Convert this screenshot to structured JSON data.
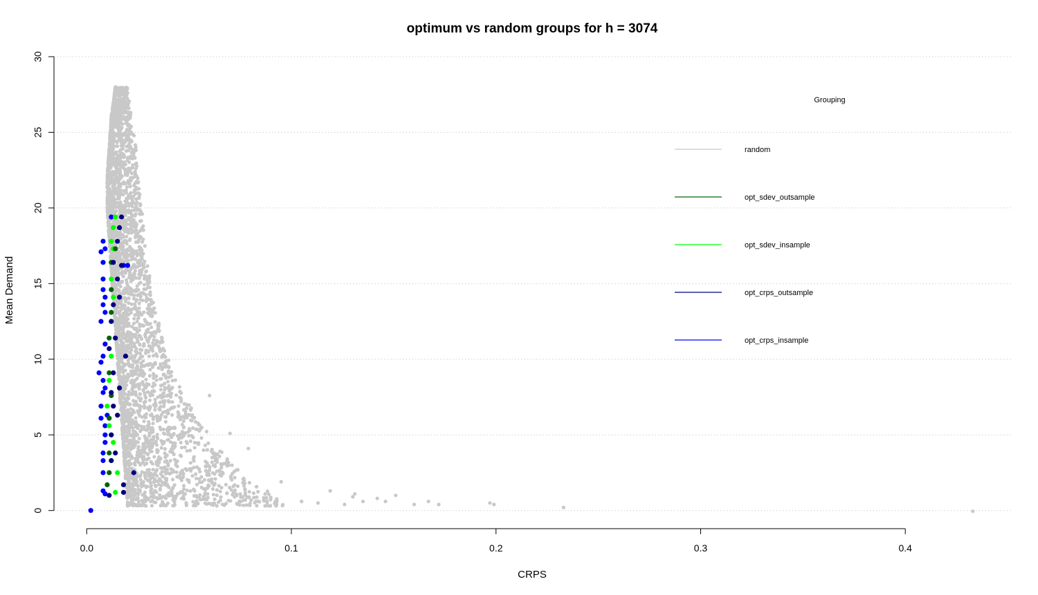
{
  "chart_data": {
    "type": "scatter",
    "title": "optimum vs random groups for h = 3074",
    "xlabel": "CRPS",
    "ylabel": "Mean Demand",
    "xlim": [
      -0.016,
      0.452
    ],
    "ylim": [
      -1.2,
      30
    ],
    "x_ticks": [
      0.0,
      0.1,
      0.2,
      0.3,
      0.4
    ],
    "x_tick_labels": [
      "0.0",
      "0.1",
      "0.2",
      "0.3",
      "0.4"
    ],
    "y_ticks": [
      0,
      5,
      10,
      15,
      20,
      25,
      30
    ],
    "y_tick_labels": [
      "0",
      "5",
      "10",
      "15",
      "20",
      "25",
      "30"
    ],
    "grid": "horizontal-dotted",
    "legend": {
      "title": "Grouping",
      "position": "top-right",
      "entries": [
        {
          "label": "random",
          "color": "#c8c8c8"
        },
        {
          "label": "opt_sdev_outsample",
          "color": "#006400"
        },
        {
          "label": "opt_sdev_insample",
          "color": "#00ff00"
        },
        {
          "label": "opt_crps_outsample",
          "color": "#000080"
        },
        {
          "label": "opt_crps_insample",
          "color": "#0000ff"
        }
      ]
    },
    "random_cloud_envelope": {
      "color": "#c8c8c8",
      "point_count": 3500,
      "profile": [
        {
          "y": 28.0,
          "x_min": 0.014,
          "x_max": 0.02
        },
        {
          "y": 26.0,
          "x_min": 0.012,
          "x_max": 0.022
        },
        {
          "y": 24.0,
          "x_min": 0.011,
          "x_max": 0.024
        },
        {
          "y": 22.0,
          "x_min": 0.01,
          "x_max": 0.025
        },
        {
          "y": 20.0,
          "x_min": 0.01,
          "x_max": 0.027
        },
        {
          "y": 18.0,
          "x_min": 0.011,
          "x_max": 0.028
        },
        {
          "y": 16.0,
          "x_min": 0.012,
          "x_max": 0.03
        },
        {
          "y": 14.0,
          "x_min": 0.013,
          "x_max": 0.033
        },
        {
          "y": 12.0,
          "x_min": 0.014,
          "x_max": 0.036
        },
        {
          "y": 10.0,
          "x_min": 0.015,
          "x_max": 0.04
        },
        {
          "y": 8.0,
          "x_min": 0.016,
          "x_max": 0.046
        },
        {
          "y": 6.0,
          "x_min": 0.017,
          "x_max": 0.055
        },
        {
          "y": 4.0,
          "x_min": 0.018,
          "x_max": 0.065
        },
        {
          "y": 2.0,
          "x_min": 0.019,
          "x_max": 0.08
        },
        {
          "y": 0.3,
          "x_min": 0.02,
          "x_max": 0.1
        }
      ],
      "outliers": [
        {
          "x": 0.06,
          "y": 7.6
        },
        {
          "x": 0.07,
          "y": 5.1
        },
        {
          "x": 0.079,
          "y": 4.1
        },
        {
          "x": 0.095,
          "y": 1.9
        },
        {
          "x": 0.105,
          "y": 0.6
        },
        {
          "x": 0.113,
          "y": 0.5
        },
        {
          "x": 0.119,
          "y": 1.3
        },
        {
          "x": 0.126,
          "y": 0.4
        },
        {
          "x": 0.13,
          "y": 0.9
        },
        {
          "x": 0.135,
          "y": 0.6
        },
        {
          "x": 0.131,
          "y": 1.1
        },
        {
          "x": 0.142,
          "y": 0.8
        },
        {
          "x": 0.146,
          "y": 0.6
        },
        {
          "x": 0.151,
          "y": 1.0
        },
        {
          "x": 0.16,
          "y": 0.4
        },
        {
          "x": 0.167,
          "y": 0.6
        },
        {
          "x": 0.172,
          "y": 0.4
        },
        {
          "x": 0.197,
          "y": 0.5
        },
        {
          "x": 0.199,
          "y": 0.4
        },
        {
          "x": 0.233,
          "y": 0.2
        },
        {
          "x": 0.433,
          "y": -0.05
        }
      ]
    },
    "series": [
      {
        "name": "opt_crps_insample",
        "color": "#0000ff",
        "points": [
          {
            "x": 0.002,
            "y": 0.0
          },
          {
            "x": 0.009,
            "y": 1.1
          },
          {
            "x": 0.008,
            "y": 1.3
          },
          {
            "x": 0.008,
            "y": 2.5
          },
          {
            "x": 0.008,
            "y": 3.3
          },
          {
            "x": 0.008,
            "y": 3.8
          },
          {
            "x": 0.009,
            "y": 4.5
          },
          {
            "x": 0.009,
            "y": 5.0
          },
          {
            "x": 0.009,
            "y": 5.6
          },
          {
            "x": 0.007,
            "y": 6.1
          },
          {
            "x": 0.01,
            "y": 6.3
          },
          {
            "x": 0.007,
            "y": 6.9
          },
          {
            "x": 0.008,
            "y": 7.8
          },
          {
            "x": 0.009,
            "y": 8.1
          },
          {
            "x": 0.008,
            "y": 8.6
          },
          {
            "x": 0.006,
            "y": 9.1
          },
          {
            "x": 0.007,
            "y": 9.8
          },
          {
            "x": 0.008,
            "y": 10.2
          },
          {
            "x": 0.009,
            "y": 11.0
          },
          {
            "x": 0.007,
            "y": 12.5
          },
          {
            "x": 0.009,
            "y": 13.1
          },
          {
            "x": 0.008,
            "y": 13.6
          },
          {
            "x": 0.009,
            "y": 14.1
          },
          {
            "x": 0.008,
            "y": 14.6
          },
          {
            "x": 0.008,
            "y": 15.3
          },
          {
            "x": 0.008,
            "y": 16.4
          },
          {
            "x": 0.007,
            "y": 17.1
          },
          {
            "x": 0.009,
            "y": 17.3
          },
          {
            "x": 0.008,
            "y": 17.8
          },
          {
            "x": 0.012,
            "y": 19.4
          },
          {
            "x": 0.02,
            "y": 16.2
          },
          {
            "x": 0.018,
            "y": 16.2
          }
        ]
      },
      {
        "name": "opt_sdev_insample",
        "color": "#00ff00",
        "points": [
          {
            "x": 0.014,
            "y": 1.2
          },
          {
            "x": 0.015,
            "y": 2.5
          },
          {
            "x": 0.012,
            "y": 3.3
          },
          {
            "x": 0.013,
            "y": 4.5
          },
          {
            "x": 0.011,
            "y": 5.6
          },
          {
            "x": 0.01,
            "y": 6.9
          },
          {
            "x": 0.011,
            "y": 8.6
          },
          {
            "x": 0.012,
            "y": 10.2
          },
          {
            "x": 0.012,
            "y": 12.5
          },
          {
            "x": 0.013,
            "y": 14.1
          },
          {
            "x": 0.012,
            "y": 15.3
          },
          {
            "x": 0.013,
            "y": 17.3
          },
          {
            "x": 0.013,
            "y": 18.7
          },
          {
            "x": 0.014,
            "y": 19.4
          },
          {
            "x": 0.012,
            "y": 17.8
          }
        ]
      },
      {
        "name": "opt_sdev_outsample",
        "color": "#006400",
        "points": [
          {
            "x": 0.01,
            "y": 1.7
          },
          {
            "x": 0.011,
            "y": 2.5
          },
          {
            "x": 0.011,
            "y": 3.8
          },
          {
            "x": 0.012,
            "y": 5.0
          },
          {
            "x": 0.011,
            "y": 6.1
          },
          {
            "x": 0.012,
            "y": 7.6
          },
          {
            "x": 0.011,
            "y": 9.1
          },
          {
            "x": 0.011,
            "y": 11.4
          },
          {
            "x": 0.012,
            "y": 13.1
          },
          {
            "x": 0.012,
            "y": 14.6
          },
          {
            "x": 0.012,
            "y": 16.4
          },
          {
            "x": 0.014,
            "y": 17.3
          }
        ]
      },
      {
        "name": "opt_crps_outsample",
        "color": "#000080",
        "points": [
          {
            "x": 0.011,
            "y": 1.0
          },
          {
            "x": 0.018,
            "y": 1.2
          },
          {
            "x": 0.018,
            "y": 1.7
          },
          {
            "x": 0.023,
            "y": 2.5
          },
          {
            "x": 0.012,
            "y": 3.3
          },
          {
            "x": 0.014,
            "y": 3.8
          },
          {
            "x": 0.012,
            "y": 5.0
          },
          {
            "x": 0.015,
            "y": 6.3
          },
          {
            "x": 0.013,
            "y": 6.9
          },
          {
            "x": 0.012,
            "y": 7.8
          },
          {
            "x": 0.016,
            "y": 8.1
          },
          {
            "x": 0.013,
            "y": 9.1
          },
          {
            "x": 0.019,
            "y": 10.2
          },
          {
            "x": 0.011,
            "y": 10.7
          },
          {
            "x": 0.014,
            "y": 11.4
          },
          {
            "x": 0.012,
            "y": 12.5
          },
          {
            "x": 0.013,
            "y": 13.6
          },
          {
            "x": 0.016,
            "y": 14.1
          },
          {
            "x": 0.015,
            "y": 15.3
          },
          {
            "x": 0.013,
            "y": 16.4
          },
          {
            "x": 0.015,
            "y": 17.8
          },
          {
            "x": 0.016,
            "y": 18.7
          },
          {
            "x": 0.017,
            "y": 19.4
          },
          {
            "x": 0.017,
            "y": 16.2
          }
        ]
      }
    ]
  }
}
